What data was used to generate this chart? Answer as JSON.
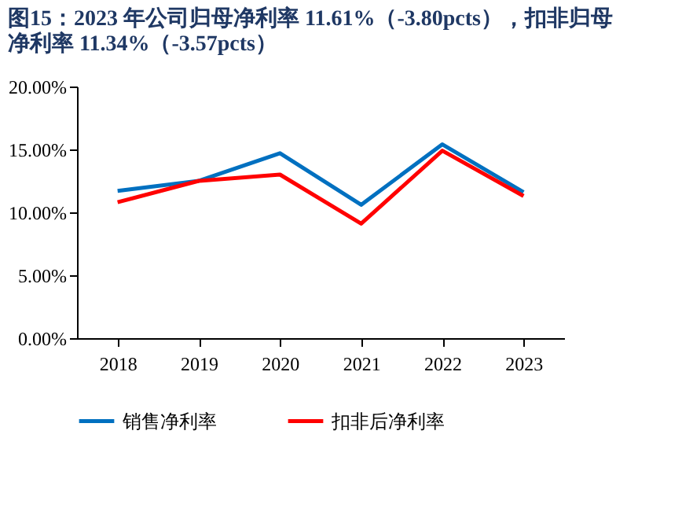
{
  "chart_data": {
    "type": "line",
    "title": "图15：2023 年公司归母净利率 11.61%（-3.80pcts），扣非归母净利率 11.34%（-3.57pcts）",
    "categories": [
      "2018",
      "2019",
      "2020",
      "2021",
      "2022",
      "2023"
    ],
    "series": [
      {
        "name": "销售净利率",
        "color": "#0070c0",
        "values": [
          11.7,
          12.5,
          14.7,
          10.6,
          15.4,
          11.6
        ]
      },
      {
        "name": "扣非后净利率",
        "color": "#ff0000",
        "values": [
          10.8,
          12.5,
          13.0,
          9.1,
          14.9,
          11.3
        ]
      }
    ],
    "ylim": [
      0,
      20
    ],
    "yticks": [
      {
        "value": 0,
        "label": "0.00%"
      },
      {
        "value": 5,
        "label": "5.00%"
      },
      {
        "value": 10,
        "label": "10.00%"
      },
      {
        "value": 15,
        "label": "15.00%"
      },
      {
        "value": 20,
        "label": "20.00%"
      }
    ],
    "grid": false,
    "legend": "bottom",
    "marker": "none",
    "line_style": "solid"
  }
}
